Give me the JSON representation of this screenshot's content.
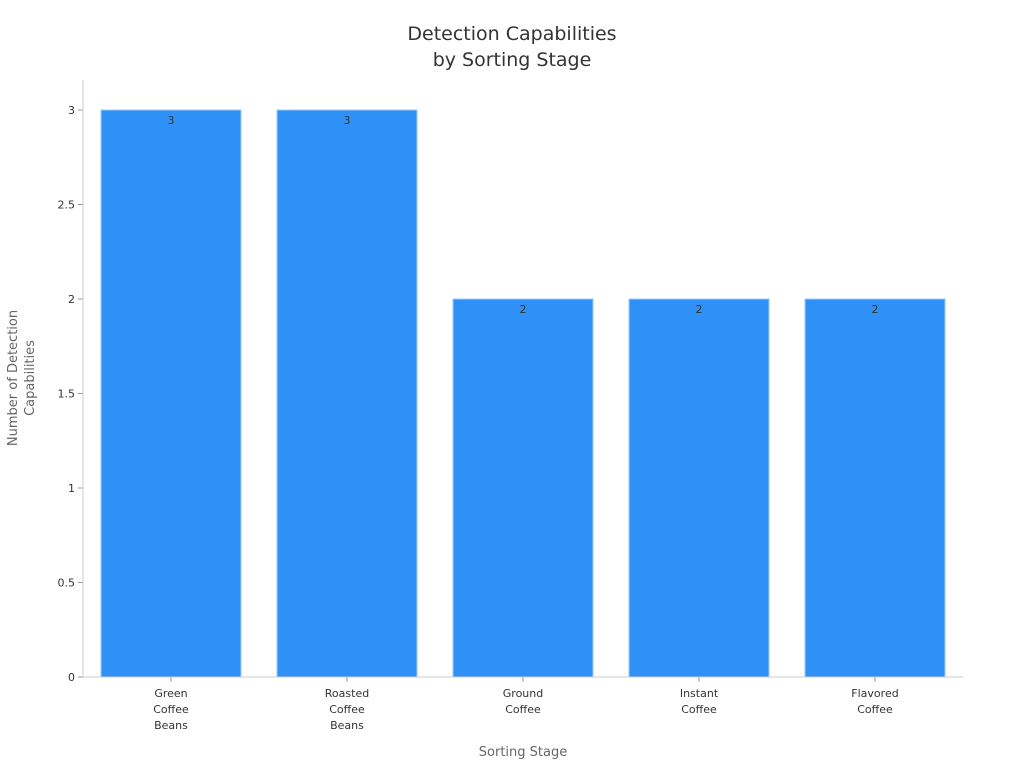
{
  "chart_data": {
    "type": "bar",
    "title": [
      "Detection Capabilities",
      "by Sorting Stage"
    ],
    "xlabel": "Sorting Stage",
    "ylabel": [
      "Number of Detection",
      "Capabilities"
    ],
    "categories": [
      "Green Coffee Beans",
      "Roasted Coffee Beans",
      "Ground Coffee",
      "Instant Coffee",
      "Flavored Coffee"
    ],
    "values": [
      3,
      3,
      2,
      2,
      2
    ],
    "ylim": [
      0,
      3
    ],
    "yticks": [
      "0",
      "0.5",
      "1",
      "1.5",
      "2",
      "2.5",
      "3"
    ],
    "grid": false,
    "bar_color": "#2F91F8",
    "bar_edge_color": "#9CC8F5"
  }
}
